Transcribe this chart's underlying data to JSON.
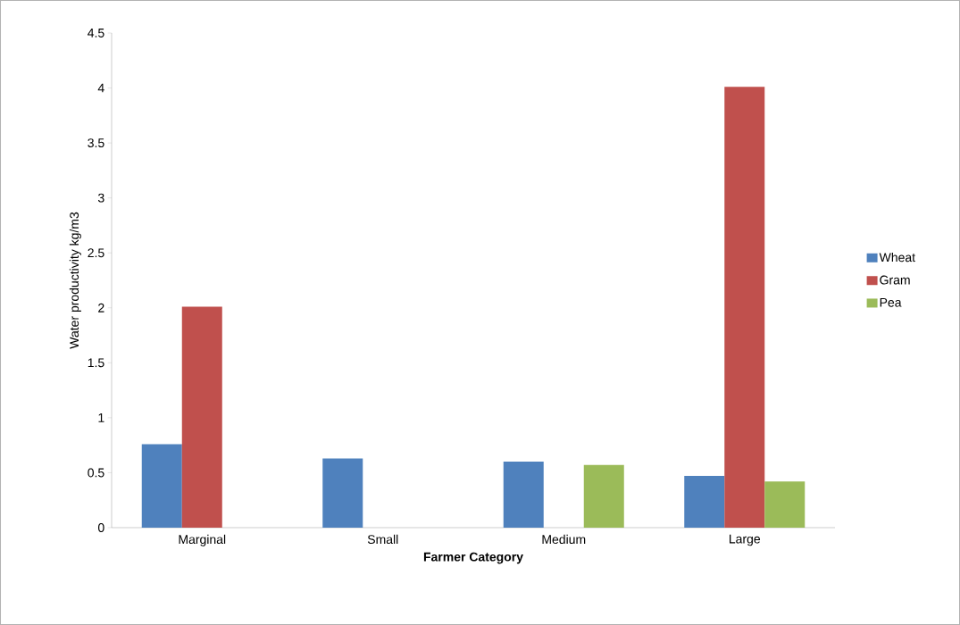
{
  "chart_data": {
    "type": "bar",
    "xlabel": "Farmer Category",
    "ylabel": "Water productivity kg/m3",
    "categories": [
      "Marginal",
      "Small",
      "Medium",
      "Large"
    ],
    "series": [
      {
        "name": "Wheat",
        "color": "#4f81bd",
        "values": [
          0.76,
          0.63,
          0.6,
          0.47
        ]
      },
      {
        "name": "Gram",
        "color": "#c0504d",
        "values": [
          2.01,
          null,
          null,
          4.01
        ]
      },
      {
        "name": "Pea",
        "color": "#9bbb59",
        "values": [
          null,
          null,
          0.57,
          0.42
        ]
      }
    ],
    "ylim": [
      0,
      4.5
    ],
    "yticks": [
      0,
      0.5,
      1,
      1.5,
      2,
      2.5,
      3,
      3.5,
      4,
      4.5
    ],
    "grid": false,
    "legend": "right"
  }
}
